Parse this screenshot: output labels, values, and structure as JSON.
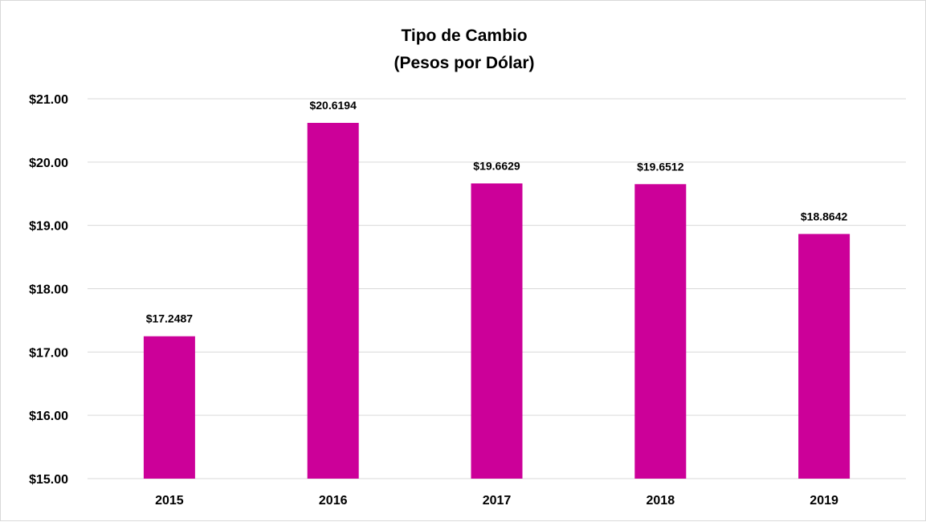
{
  "chart_data": {
    "type": "bar",
    "title": "Tipo de Cambio",
    "subtitle": "(Pesos por Dólar)",
    "categories": [
      "2015",
      "2016",
      "2017",
      "2018",
      "2019"
    ],
    "values": [
      17.2487,
      20.6194,
      19.6629,
      19.6512,
      18.8642
    ],
    "data_labels": [
      "$17.2487",
      "$20.6194",
      "$19.6629",
      "$19.6512",
      "$18.8642"
    ],
    "y_ticks": [
      "$15.00",
      "$16.00",
      "$17.00",
      "$18.00",
      "$19.00",
      "$20.00",
      "$21.00"
    ],
    "y_tick_values": [
      15,
      16,
      17,
      18,
      19,
      20,
      21
    ],
    "ylim": [
      15,
      21
    ],
    "grid": true,
    "legend": "none",
    "colors": {
      "bar": "#cc0099",
      "grid": "#d9d9d9",
      "text": "#000000"
    }
  }
}
